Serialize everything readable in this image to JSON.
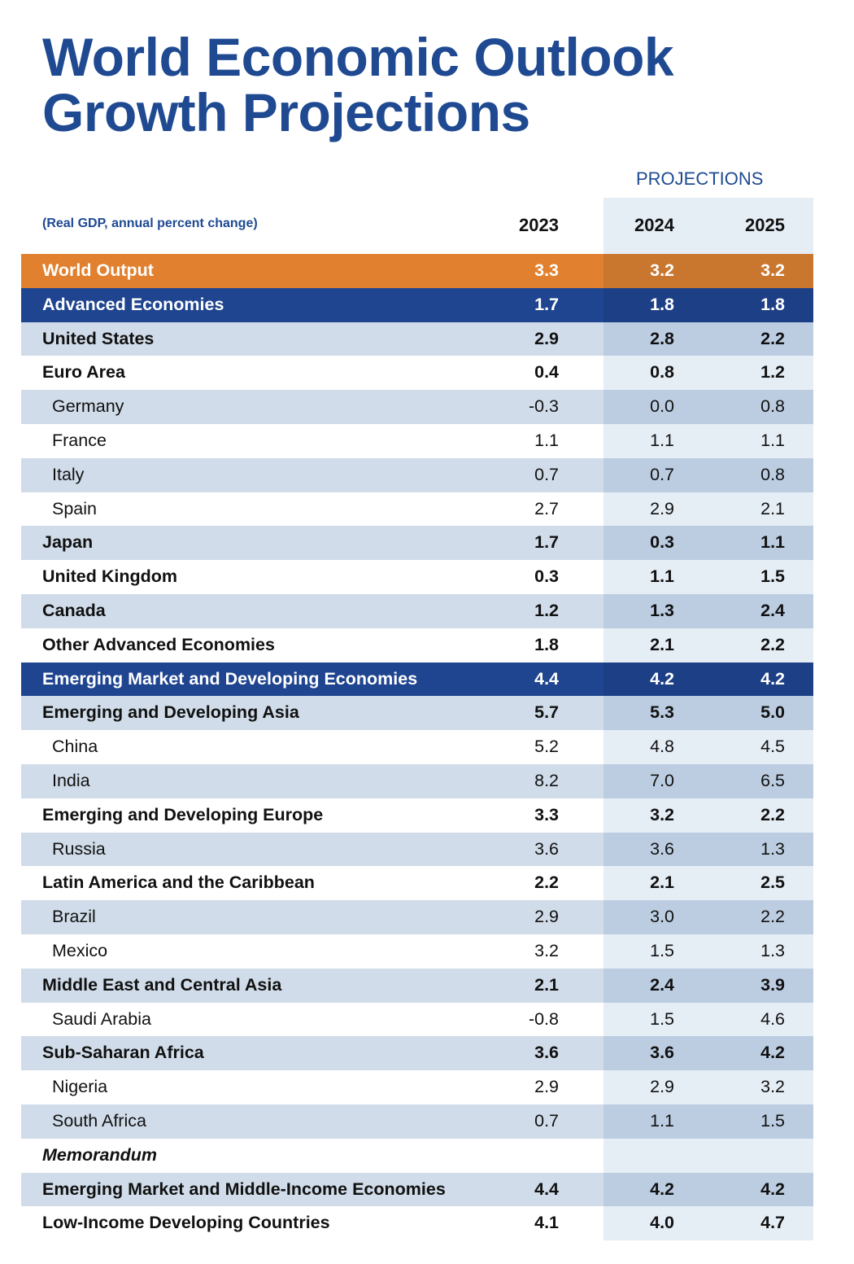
{
  "header": {
    "title_lines": [
      "World Economic Outlook",
      "Growth Projections"
    ],
    "projections_label": "PROJECTIONS",
    "subtitle": "(Real GDP, annual percent change)",
    "years": [
      "2023",
      "2024",
      "2025"
    ]
  },
  "table": {
    "rows": [
      {
        "label": "World Output",
        "values": [
          "3.3",
          "3.2",
          "3.2"
        ]
      },
      {
        "label": "Advanced Economies",
        "values": [
          "1.7",
          "1.8",
          "1.8"
        ]
      },
      {
        "label": "United States",
        "values": [
          "2.9",
          "2.8",
          "2.2"
        ]
      },
      {
        "label": "Euro Area",
        "values": [
          "0.4",
          "0.8",
          "1.2"
        ]
      },
      {
        "label": "Germany",
        "values": [
          "-0.3",
          "0.0",
          "0.8"
        ]
      },
      {
        "label": "France",
        "values": [
          "1.1",
          "1.1",
          "1.1"
        ]
      },
      {
        "label": "Italy",
        "values": [
          "0.7",
          "0.7",
          "0.8"
        ]
      },
      {
        "label": "Spain",
        "values": [
          "2.7",
          "2.9",
          "2.1"
        ]
      },
      {
        "label": "Japan",
        "values": [
          "1.7",
          "0.3",
          "1.1"
        ]
      },
      {
        "label": "United Kingdom",
        "values": [
          "0.3",
          "1.1",
          "1.5"
        ]
      },
      {
        "label": "Canada",
        "values": [
          "1.2",
          "1.3",
          "2.4"
        ]
      },
      {
        "label": "Other Advanced Economies",
        "values": [
          "1.8",
          "2.1",
          "2.2"
        ]
      },
      {
        "label": "Emerging Market and Developing Economies",
        "values": [
          "4.4",
          "4.2",
          "4.2"
        ]
      },
      {
        "label": "Emerging and Developing Asia",
        "values": [
          "5.7",
          "5.3",
          "5.0"
        ]
      },
      {
        "label": "China",
        "values": [
          "5.2",
          "4.8",
          "4.5"
        ]
      },
      {
        "label": "India",
        "values": [
          "8.2",
          "7.0",
          "6.5"
        ]
      },
      {
        "label": "Emerging and Developing Europe",
        "values": [
          "3.3",
          "3.2",
          "2.2"
        ]
      },
      {
        "label": "Russia",
        "values": [
          "3.6",
          "3.6",
          "1.3"
        ]
      },
      {
        "label": "Latin America and the Caribbean",
        "values": [
          "2.2",
          "2.1",
          "2.5"
        ]
      },
      {
        "label": "Brazil",
        "values": [
          "2.9",
          "3.0",
          "2.2"
        ]
      },
      {
        "label": "Mexico",
        "values": [
          "3.2",
          "1.5",
          "1.3"
        ]
      },
      {
        "label": "Middle East and Central Asia",
        "values": [
          "2.1",
          "2.4",
          "3.9"
        ]
      },
      {
        "label": "Saudi Arabia",
        "values": [
          "-0.8",
          "1.5",
          "4.6"
        ]
      },
      {
        "label": "Sub-Saharan Africa",
        "values": [
          "3.6",
          "3.6",
          "4.2"
        ]
      },
      {
        "label": "Nigeria",
        "values": [
          "2.9",
          "2.9",
          "3.2"
        ]
      },
      {
        "label": "South Africa",
        "values": [
          "0.7",
          "1.1",
          "1.5"
        ]
      },
      {
        "label": "Memorandum"
      },
      {
        "label": "Emerging Market and Middle-Income Economies",
        "values": [
          "4.4",
          "4.2",
          "4.2"
        ]
      },
      {
        "label": "Low-Income Developing Countries",
        "values": [
          "4.1",
          "4.0",
          "4.7"
        ]
      }
    ]
  }
}
